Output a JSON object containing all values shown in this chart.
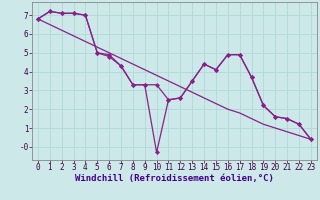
{
  "xlabel": "Windchill (Refroidissement éolien,°C)",
  "background_color": "#cce8e8",
  "line_color": "#882288",
  "xlim": [
    -0.5,
    23.5
  ],
  "ylim": [
    -0.7,
    7.7
  ],
  "yticks": [
    0,
    1,
    2,
    3,
    4,
    5,
    6,
    7
  ],
  "ytick_labels": [
    "-0",
    "1",
    "2",
    "3",
    "4",
    "5",
    "6",
    "7"
  ],
  "xticks": [
    0,
    1,
    2,
    3,
    4,
    5,
    6,
    7,
    8,
    9,
    10,
    11,
    12,
    13,
    14,
    15,
    16,
    17,
    18,
    19,
    20,
    21,
    22,
    23
  ],
  "series_jagged1": [
    6.8,
    7.2,
    7.1,
    7.1,
    7.0,
    5.0,
    4.8,
    4.3,
    3.3,
    3.3,
    3.3,
    2.5,
    2.6,
    3.5,
    4.4,
    4.1,
    4.9,
    4.9,
    3.7,
    2.2,
    1.6,
    1.5,
    1.2,
    0.4
  ],
  "series_spike": [
    6.8,
    7.2,
    7.1,
    7.1,
    7.0,
    5.0,
    4.9,
    4.3,
    3.3,
    3.3,
    -0.3,
    2.5,
    2.6,
    3.5,
    4.4,
    4.1,
    4.9,
    4.9,
    3.7,
    2.2,
    1.6,
    1.5,
    1.2,
    0.4
  ],
  "series_linear": [
    6.8,
    6.5,
    6.2,
    5.9,
    5.6,
    5.3,
    5.0,
    4.7,
    4.4,
    4.1,
    3.8,
    3.5,
    3.2,
    2.9,
    2.6,
    2.3,
    2.0,
    1.8,
    1.5,
    1.2,
    1.0,
    0.8,
    0.6,
    0.4
  ],
  "grid_color": "#aad4d4",
  "tick_fontsize": 5.5,
  "label_fontsize": 6.5
}
